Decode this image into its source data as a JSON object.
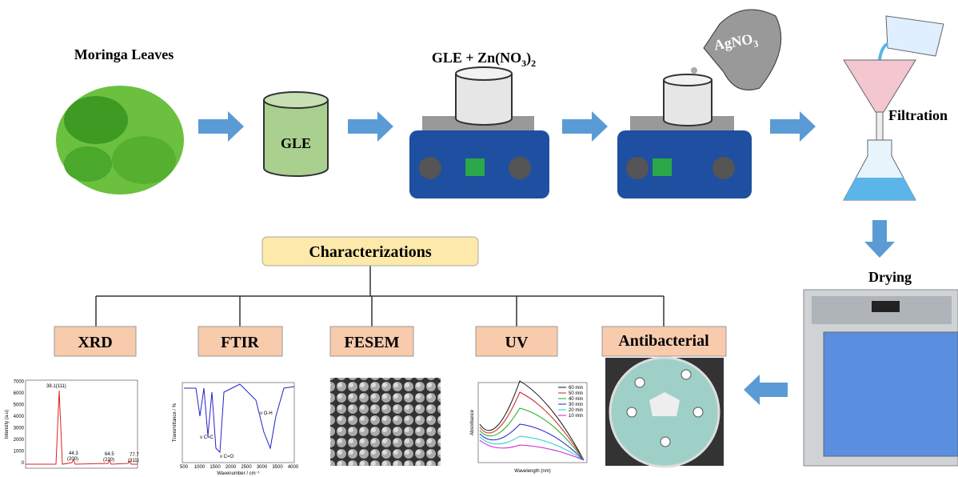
{
  "steps": {
    "leaves": "Moringa Leaves",
    "gle": "GLE",
    "mix": [
      "GLE + Zn(NO",
      "3",
      ")",
      "2"
    ],
    "silver": [
      "AgNO",
      "3"
    ],
    "filtration": "Filtration",
    "drying": "Drying"
  },
  "characterizations": {
    "title": "Characterizations",
    "methods": [
      "XRD",
      "FTIR",
      "FESEM",
      "UV",
      "Antibacterial"
    ]
  },
  "xrd": {
    "peaks": [
      "38.1(111)",
      "44.3",
      "(200)",
      "64.5",
      "(220)",
      "77.7",
      "(311)"
    ],
    "y_label": "Intensity (a.u)",
    "yticks": [
      "0",
      "1000",
      "2000",
      "3000",
      "4000",
      "5000",
      "6000",
      "7000"
    ]
  },
  "ftir": {
    "y_label": "Transmittance / %",
    "x_label": "Wavenumber / cm⁻¹",
    "annotations": [
      "ν C=C",
      "ν C=O",
      "ν O-H"
    ],
    "xticks": [
      "500",
      "1000",
      "1500",
      "2000",
      "2500",
      "3000",
      "3500",
      "4000"
    ]
  },
  "uv": {
    "legend": [
      "60 min",
      "50 min",
      "40 min",
      "30 min",
      "20 min",
      "10 min"
    ],
    "y_label": "Absorbance",
    "x_label": "Wavelength (nm)"
  }
}
